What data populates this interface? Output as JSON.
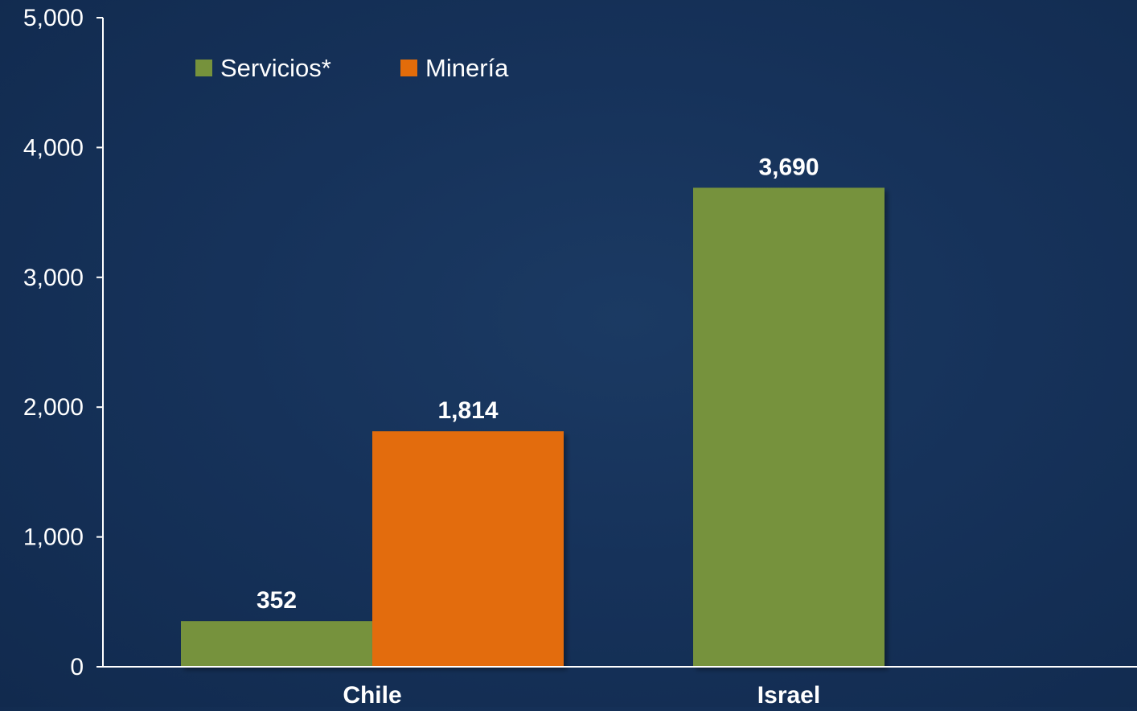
{
  "chart_data": {
    "type": "bar",
    "title": "",
    "xlabel": "",
    "ylabel": "",
    "categories": [
      "Chile",
      "Israel"
    ],
    "ylim": [
      0,
      5000
    ],
    "yticks": [
      0,
      1000,
      2000,
      3000,
      4000,
      5000
    ],
    "ytick_labels": [
      "0",
      "1,000",
      "2,000",
      "3,000",
      "4,000",
      "5,000"
    ],
    "legend_position": "top-left",
    "grid": false,
    "series": [
      {
        "name": "Servicios*",
        "color": "#76923c",
        "values": [
          352,
          3690
        ],
        "value_labels": [
          "352",
          "3,690"
        ]
      },
      {
        "name": "Minería",
        "color": "#e36c0a",
        "values": [
          1814,
          null
        ],
        "value_labels": [
          "1,814",
          ""
        ]
      }
    ]
  }
}
